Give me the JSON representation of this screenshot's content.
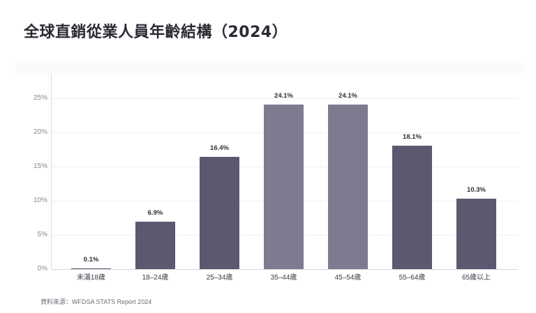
{
  "title": "全球直銷從業人員年齡結構（2024）",
  "source": "資料來源：WFDSA STATS Report 2024",
  "colors": {
    "bar_default": "#5d5870",
    "bar_highlight": "#7e7a90",
    "gridline": "#efeff2",
    "axis": "#d4d4dc",
    "title": "#2b2a33"
  },
  "axis": {
    "y_ticks": [
      "0%",
      "5%",
      "10%",
      "15%",
      "20%",
      "25%"
    ]
  },
  "chart_data": {
    "type": "bar",
    "title": "全球直銷從業人員年齡結構（2024）",
    "xlabel": "",
    "ylabel": "",
    "categories": [
      "未滿18歲",
      "18–24歲",
      "25–34歲",
      "35–44歲",
      "45–54歲",
      "55–64歲",
      "65歲以上"
    ],
    "values": [
      0.1,
      6.9,
      16.4,
      24.1,
      24.1,
      18.1,
      10.3
    ],
    "value_labels": [
      "0.1%",
      "6.9%",
      "16.4%",
      "24.1%",
      "24.1%",
      "18.1%",
      "10.3%"
    ],
    "highlighted": [
      false,
      false,
      false,
      true,
      true,
      false,
      false
    ],
    "ylim": [
      0,
      28
    ],
    "y_ticks": [
      0,
      5,
      10,
      15,
      20,
      25
    ],
    "y_tick_format": "percent",
    "grid": true,
    "legend": null,
    "annotation": "資料來源：WFDSA STATS Report 2024"
  }
}
